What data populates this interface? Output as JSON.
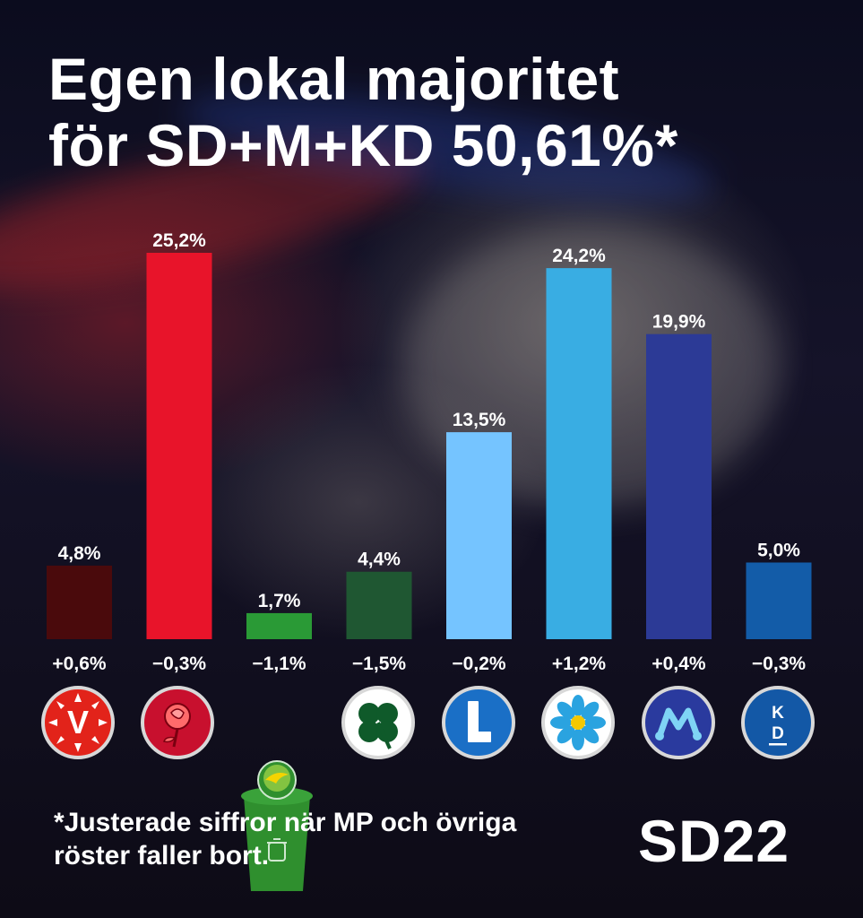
{
  "title": "Egen lokal majoritet\nför SD+M+KD 50,61%*",
  "footnote": "*Justerade siffror när MP och övriga\nröster faller bort.",
  "brand": "SD22",
  "chart_data": {
    "type": "bar",
    "categories": [
      "V",
      "S",
      "MP",
      "C",
      "L",
      "SD",
      "M",
      "KD"
    ],
    "values": [
      4.8,
      25.2,
      1.7,
      4.4,
      13.5,
      24.2,
      19.9,
      5.0
    ],
    "value_labels": [
      "4,8%",
      "25,2%",
      "1,7%",
      "4,4%",
      "13,5%",
      "24,2%",
      "19,9%",
      "5,0%"
    ],
    "change_labels": [
      "+0,6%",
      "−0,3%",
      "−1,1%",
      "−1,5%",
      "−0,2%",
      "+1,2%",
      "+0,4%",
      "−0,3%"
    ],
    "colors": [
      "#4a0a0c",
      "#e8142a",
      "#2a9a36",
      "#1f5732",
      "#75c4ff",
      "#39ade3",
      "#2c3a96",
      "#135ca8"
    ],
    "ylim": [
      0,
      25.2
    ],
    "grid": false,
    "legend": "none"
  }
}
